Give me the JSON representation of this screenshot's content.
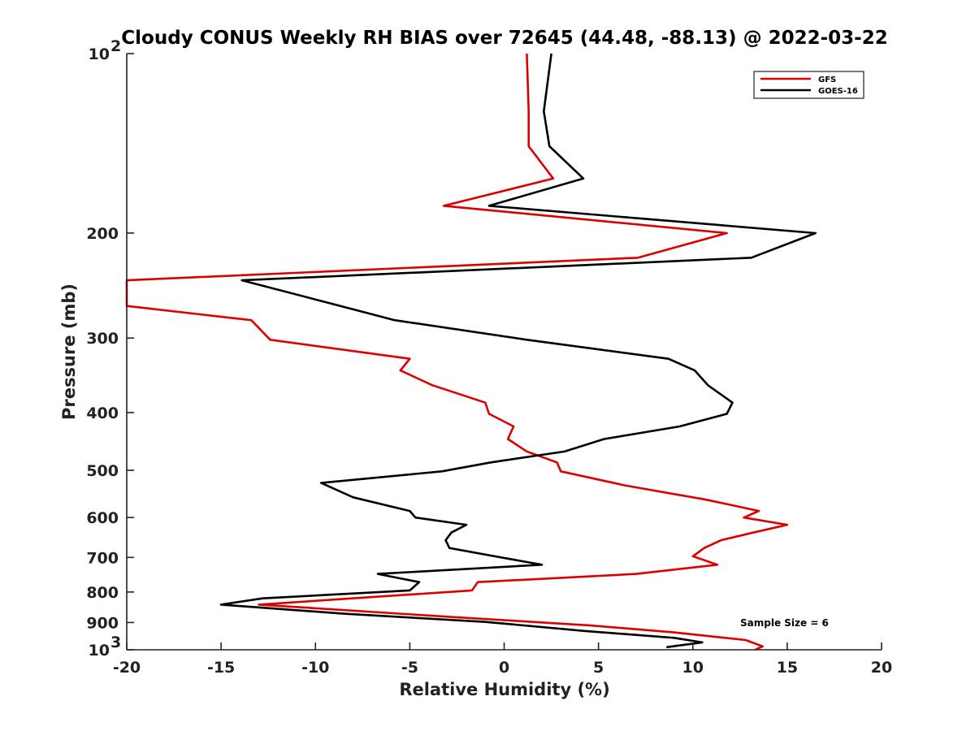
{
  "chart_data": {
    "type": "line",
    "title": "Cloudy CONUS Weekly RH BIAS over 72645 (44.48, -88.13) @ 2022-03-22",
    "xlabel": "Relative Humidity (%)",
    "ylabel": "Pressure (mb)",
    "xlim": [
      -20,
      20
    ],
    "ylim": [
      100,
      1000
    ],
    "yscale": "log",
    "y_reversed": true,
    "x_ticks": [
      "-20",
      "-15",
      "-10",
      "-5",
      "0",
      "5",
      "10",
      "15",
      "20"
    ],
    "y_ticks": [
      {
        "value": 100,
        "base": "10",
        "exp": "2"
      },
      {
        "value": 200,
        "label": "200"
      },
      {
        "value": 300,
        "label": "300"
      },
      {
        "value": 400,
        "label": "400"
      },
      {
        "value": 500,
        "label": "500"
      },
      {
        "value": 600,
        "label": "600"
      },
      {
        "value": 700,
        "label": "700"
      },
      {
        "value": 800,
        "label": "800"
      },
      {
        "value": 900,
        "label": "900"
      },
      {
        "value": 1000,
        "base": "10",
        "exp": "3"
      }
    ],
    "grid": false,
    "legend_position": "top-right",
    "annotation": "Sample Size = 6",
    "series": [
      {
        "name": "GFS",
        "color": "#dd0000",
        "points": [
          [
            1.2,
            100
          ],
          [
            1.3,
            125
          ],
          [
            1.3,
            143
          ],
          [
            2.6,
            162
          ],
          [
            -3.2,
            180
          ],
          [
            11.8,
            200
          ],
          [
            7.1,
            220
          ],
          [
            -20.0,
            240
          ],
          [
            -20.0,
            265
          ],
          [
            -13.4,
            280
          ],
          [
            -12.4,
            302
          ],
          [
            -5.0,
            325
          ],
          [
            -5.5,
            340
          ],
          [
            -3.8,
            360
          ],
          [
            -1.0,
            385
          ],
          [
            -0.8,
            402
          ],
          [
            0.5,
            422
          ],
          [
            0.2,
            443
          ],
          [
            1.2,
            465
          ],
          [
            2.8,
            485
          ],
          [
            3.0,
            502
          ],
          [
            6.4,
            530
          ],
          [
            10.7,
            560
          ],
          [
            13.5,
            585
          ],
          [
            12.7,
            600
          ],
          [
            15.0,
            617
          ],
          [
            13.2,
            636
          ],
          [
            11.5,
            655
          ],
          [
            10.6,
            675
          ],
          [
            10.0,
            697
          ],
          [
            11.3,
            720
          ],
          [
            7.0,
            746
          ],
          [
            -1.4,
            770
          ],
          [
            -1.7,
            795
          ],
          [
            -13.0,
            840
          ],
          [
            -3.0,
            880
          ],
          [
            4.5,
            910
          ],
          [
            9.0,
            935
          ],
          [
            12.8,
            963
          ],
          [
            13.7,
            987
          ],
          [
            13.3,
            1000
          ]
        ]
      },
      {
        "name": "GOES-16",
        "color": "#000000",
        "points": [
          [
            2.5,
            100
          ],
          [
            2.1,
            125
          ],
          [
            2.4,
            143
          ],
          [
            4.2,
            162
          ],
          [
            -0.8,
            180
          ],
          [
            16.5,
            200
          ],
          [
            13.1,
            220
          ],
          [
            -13.9,
            240
          ],
          [
            -10.1,
            258
          ],
          [
            -5.8,
            280
          ],
          [
            1.2,
            302
          ],
          [
            8.7,
            325
          ],
          [
            10.1,
            340
          ],
          [
            10.8,
            360
          ],
          [
            12.1,
            385
          ],
          [
            11.8,
            402
          ],
          [
            9.3,
            422
          ],
          [
            5.3,
            443
          ],
          [
            3.2,
            465
          ],
          [
            -0.7,
            485
          ],
          [
            -3.3,
            502
          ],
          [
            -9.7,
            525
          ],
          [
            -8.0,
            555
          ],
          [
            -5.0,
            585
          ],
          [
            -4.7,
            600
          ],
          [
            -2.0,
            617
          ],
          [
            -2.8,
            636
          ],
          [
            -3.1,
            655
          ],
          [
            -2.9,
            675
          ],
          [
            -0.5,
            697
          ],
          [
            2.0,
            720
          ],
          [
            -6.7,
            746
          ],
          [
            -4.5,
            770
          ],
          [
            -5.0,
            795
          ],
          [
            -12.8,
            820
          ],
          [
            -15.0,
            840
          ],
          [
            -8.5,
            870
          ],
          [
            -1.0,
            898
          ],
          [
            4.3,
            930
          ],
          [
            9.0,
            955
          ],
          [
            10.5,
            972
          ],
          [
            8.6,
            990
          ]
        ]
      }
    ]
  }
}
